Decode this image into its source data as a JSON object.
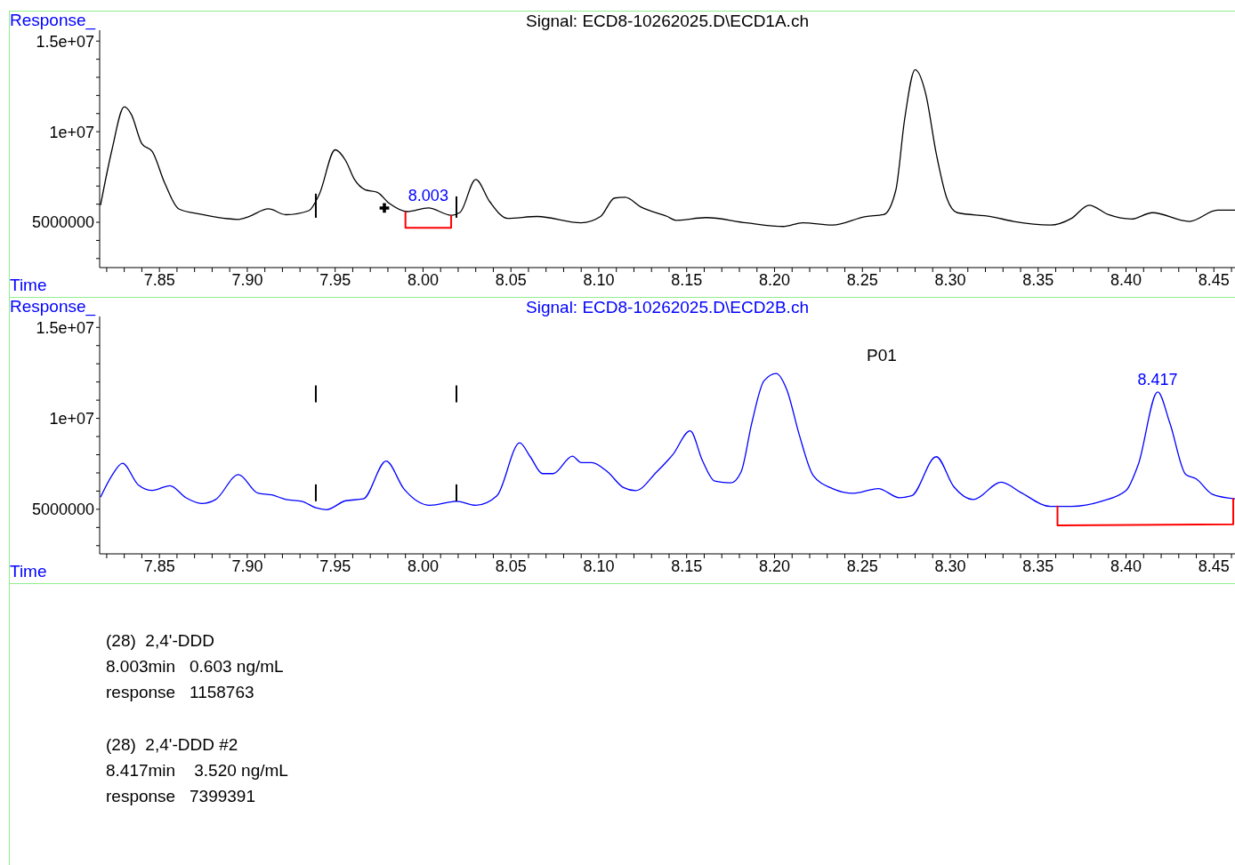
{
  "chart_data": [
    {
      "type": "line",
      "title": "Signal: ECD8-10262025.D\\ECD1A.ch",
      "xlabel": "Time",
      "ylabel": "Response_",
      "xlim": [
        7.816,
        8.462
      ],
      "ylim": [
        2500000,
        15600000
      ],
      "xticks": [
        {
          "value": 7.82,
          "label": null
        },
        {
          "value": 7.83,
          "label": null
        },
        {
          "value": 7.84,
          "label": null
        },
        {
          "value": 7.85,
          "label": "7.85"
        },
        {
          "value": 7.86,
          "label": null
        },
        {
          "value": 7.87,
          "label": null
        },
        {
          "value": 7.88,
          "label": null
        },
        {
          "value": 7.89,
          "label": null
        },
        {
          "value": 7.9,
          "label": "7.90"
        },
        {
          "value": 7.91,
          "label": null
        },
        {
          "value": 7.92,
          "label": null
        },
        {
          "value": 7.93,
          "label": null
        },
        {
          "value": 7.94,
          "label": null
        },
        {
          "value": 7.95,
          "label": "7.95"
        },
        {
          "value": 7.96,
          "label": null
        },
        {
          "value": 7.97,
          "label": null
        },
        {
          "value": 7.98,
          "label": null
        },
        {
          "value": 7.99,
          "label": null
        },
        {
          "value": 8.0,
          "label": "8.00"
        },
        {
          "value": 8.01,
          "label": null
        },
        {
          "value": 8.02,
          "label": null
        },
        {
          "value": 8.03,
          "label": null
        },
        {
          "value": 8.04,
          "label": null
        },
        {
          "value": 8.05,
          "label": "8.05"
        },
        {
          "value": 8.06,
          "label": null
        },
        {
          "value": 8.07,
          "label": null
        },
        {
          "value": 8.08,
          "label": null
        },
        {
          "value": 8.09,
          "label": null
        },
        {
          "value": 8.1,
          "label": "8.10"
        },
        {
          "value": 8.11,
          "label": null
        },
        {
          "value": 8.12,
          "label": null
        },
        {
          "value": 8.13,
          "label": null
        },
        {
          "value": 8.14,
          "label": null
        },
        {
          "value": 8.15,
          "label": "8.15"
        },
        {
          "value": 8.16,
          "label": null
        },
        {
          "value": 8.17,
          "label": null
        },
        {
          "value": 8.18,
          "label": null
        },
        {
          "value": 8.19,
          "label": null
        },
        {
          "value": 8.2,
          "label": "8.20"
        },
        {
          "value": 8.21,
          "label": null
        },
        {
          "value": 8.22,
          "label": null
        },
        {
          "value": 8.23,
          "label": null
        },
        {
          "value": 8.24,
          "label": null
        },
        {
          "value": 8.25,
          "label": "8.25"
        },
        {
          "value": 8.26,
          "label": null
        },
        {
          "value": 8.27,
          "label": null
        },
        {
          "value": 8.28,
          "label": null
        },
        {
          "value": 8.29,
          "label": null
        },
        {
          "value": 8.3,
          "label": "8.30"
        },
        {
          "value": 8.31,
          "label": null
        },
        {
          "value": 8.32,
          "label": null
        },
        {
          "value": 8.33,
          "label": null
        },
        {
          "value": 8.34,
          "label": null
        },
        {
          "value": 8.35,
          "label": "8.35"
        },
        {
          "value": 8.36,
          "label": null
        },
        {
          "value": 8.37,
          "label": null
        },
        {
          "value": 8.38,
          "label": null
        },
        {
          "value": 8.39,
          "label": null
        },
        {
          "value": 8.4,
          "label": "8.40"
        },
        {
          "value": 8.41,
          "label": null
        },
        {
          "value": 8.42,
          "label": null
        },
        {
          "value": 8.43,
          "label": null
        },
        {
          "value": 8.44,
          "label": null
        },
        {
          "value": 8.45,
          "label": "8.45"
        },
        {
          "value": 8.46,
          "label": null
        }
      ],
      "yticks": [
        {
          "value": 3000000,
          "label": null
        },
        {
          "value": 4000000,
          "label": null
        },
        {
          "value": 5000000,
          "label": "5000000"
        },
        {
          "value": 6000000,
          "label": null
        },
        {
          "value": 7000000,
          "label": null
        },
        {
          "value": 8000000,
          "label": null
        },
        {
          "value": 9000000,
          "label": null
        },
        {
          "value": 10000000,
          "label": "1e+07"
        },
        {
          "value": 11000000,
          "label": null
        },
        {
          "value": 12000000,
          "label": null
        },
        {
          "value": 13000000,
          "label": null
        },
        {
          "value": 14000000,
          "label": null
        },
        {
          "value": 15000000,
          "label": "1.5e+07"
        }
      ],
      "annotations": [
        {
          "text": "8.003",
          "x": 8.003,
          "y": 5790000
        }
      ],
      "series": [
        {
          "type": "line",
          "color": "#000000",
          "x": [
            7.8165,
            7.823,
            7.83,
            7.834,
            7.84,
            7.846,
            7.853,
            7.861,
            7.874,
            7.895,
            7.901,
            7.912,
            7.922,
            7.935,
            7.941,
            7.95,
            7.956,
            7.961,
            7.967,
            7.974,
            7.981,
            7.991,
            8.003,
            8.016,
            8.021,
            8.03,
            8.038,
            8.048,
            8.065,
            8.09,
            8.101,
            8.109,
            8.115,
            8.124,
            8.139,
            8.144,
            8.161,
            8.184,
            8.205,
            8.216,
            8.233,
            8.252,
            8.262,
            8.269,
            8.274,
            8.28,
            8.286,
            8.292,
            8.298,
            8.304,
            8.323,
            8.336,
            8.357,
            8.369,
            8.379,
            8.39,
            8.403,
            8.415,
            8.436,
            8.452,
            8.462
          ],
          "values": [
            5940000,
            9000000,
            11370000,
            10960000,
            9340000,
            8900000,
            7170000,
            5740000,
            5440000,
            5160000,
            5320000,
            5740000,
            5420000,
            5640000,
            6550000,
            9000000,
            8400000,
            7360000,
            6800000,
            6650000,
            6030000,
            5590000,
            5790000,
            5390000,
            5540000,
            7360000,
            6130000,
            5220000,
            5320000,
            4970000,
            5320000,
            6340000,
            6380000,
            5840000,
            5320000,
            5110000,
            5260000,
            4970000,
            4770000,
            4970000,
            4850000,
            5320000,
            5420000,
            6770000,
            10670000,
            13420000,
            12100000,
            8800000,
            6340000,
            5530000,
            5320000,
            5050000,
            4850000,
            5220000,
            5940000,
            5420000,
            5180000,
            5530000,
            5050000,
            5670000,
            5670000
          ]
        },
        {
          "type": "line",
          "color": "#000000",
          "x": [
            7.939,
            7.939
          ],
          "values": [
            5250000,
            6580000
          ]
        },
        {
          "type": "line",
          "color": "#000000",
          "x": [
            8.019,
            8.019
          ],
          "values": [
            5250000,
            6430000
          ]
        },
        {
          "type": "line",
          "color": "#ff0000",
          "x": [
            7.99,
            7.99,
            8.016,
            8.016
          ],
          "values": [
            5600000,
            4700000,
            4700000,
            5400000
          ]
        },
        {
          "type": "scatter",
          "marker": "cross",
          "color": "#000000",
          "x": [
            7.978
          ],
          "values": [
            5790000
          ]
        }
      ]
    },
    {
      "type": "line",
      "title": "Signal: ECD8-10262025.D\\ECD2B.ch",
      "xlabel": "Time",
      "ylabel": "Response_",
      "xlim": [
        7.816,
        8.462
      ],
      "ylim": [
        2550000,
        15600000
      ],
      "xticks": [
        {
          "value": 7.82,
          "label": null
        },
        {
          "value": 7.83,
          "label": null
        },
        {
          "value": 7.84,
          "label": null
        },
        {
          "value": 7.85,
          "label": "7.85"
        },
        {
          "value": 7.86,
          "label": null
        },
        {
          "value": 7.87,
          "label": null
        },
        {
          "value": 7.88,
          "label": null
        },
        {
          "value": 7.89,
          "label": null
        },
        {
          "value": 7.9,
          "label": "7.90"
        },
        {
          "value": 7.91,
          "label": null
        },
        {
          "value": 7.92,
          "label": null
        },
        {
          "value": 7.93,
          "label": null
        },
        {
          "value": 7.94,
          "label": null
        },
        {
          "value": 7.95,
          "label": "7.95"
        },
        {
          "value": 7.96,
          "label": null
        },
        {
          "value": 7.97,
          "label": null
        },
        {
          "value": 7.98,
          "label": null
        },
        {
          "value": 7.99,
          "label": null
        },
        {
          "value": 8.0,
          "label": "8.00"
        },
        {
          "value": 8.01,
          "label": null
        },
        {
          "value": 8.02,
          "label": null
        },
        {
          "value": 8.03,
          "label": null
        },
        {
          "value": 8.04,
          "label": null
        },
        {
          "value": 8.05,
          "label": "8.05"
        },
        {
          "value": 8.06,
          "label": null
        },
        {
          "value": 8.07,
          "label": null
        },
        {
          "value": 8.08,
          "label": null
        },
        {
          "value": 8.09,
          "label": null
        },
        {
          "value": 8.1,
          "label": "8.10"
        },
        {
          "value": 8.11,
          "label": null
        },
        {
          "value": 8.12,
          "label": null
        },
        {
          "value": 8.13,
          "label": null
        },
        {
          "value": 8.14,
          "label": null
        },
        {
          "value": 8.15,
          "label": "8.15"
        },
        {
          "value": 8.16,
          "label": null
        },
        {
          "value": 8.17,
          "label": null
        },
        {
          "value": 8.18,
          "label": null
        },
        {
          "value": 8.19,
          "label": null
        },
        {
          "value": 8.2,
          "label": "8.20"
        },
        {
          "value": 8.21,
          "label": null
        },
        {
          "value": 8.22,
          "label": null
        },
        {
          "value": 8.23,
          "label": null
        },
        {
          "value": 8.24,
          "label": null
        },
        {
          "value": 8.25,
          "label": "8.25"
        },
        {
          "value": 8.26,
          "label": null
        },
        {
          "value": 8.27,
          "label": null
        },
        {
          "value": 8.28,
          "label": null
        },
        {
          "value": 8.29,
          "label": null
        },
        {
          "value": 8.3,
          "label": "8.30"
        },
        {
          "value": 8.31,
          "label": null
        },
        {
          "value": 8.32,
          "label": null
        },
        {
          "value": 8.33,
          "label": null
        },
        {
          "value": 8.34,
          "label": null
        },
        {
          "value": 8.35,
          "label": "8.35"
        },
        {
          "value": 8.36,
          "label": null
        },
        {
          "value": 8.37,
          "label": null
        },
        {
          "value": 8.38,
          "label": null
        },
        {
          "value": 8.39,
          "label": null
        },
        {
          "value": 8.4,
          "label": "8.40"
        },
        {
          "value": 8.41,
          "label": null
        },
        {
          "value": 8.42,
          "label": null
        },
        {
          "value": 8.43,
          "label": null
        },
        {
          "value": 8.44,
          "label": null
        },
        {
          "value": 8.45,
          "label": "8.45"
        },
        {
          "value": 8.46,
          "label": null
        }
      ],
      "yticks": [
        {
          "value": 3000000,
          "label": null
        },
        {
          "value": 4000000,
          "label": null
        },
        {
          "value": 5000000,
          "label": "5000000"
        },
        {
          "value": 6000000,
          "label": null
        },
        {
          "value": 7000000,
          "label": null
        },
        {
          "value": 8000000,
          "label": null
        },
        {
          "value": 9000000,
          "label": null
        },
        {
          "value": 10000000,
          "label": "1e+07"
        },
        {
          "value": 11000000,
          "label": null
        },
        {
          "value": 12000000,
          "label": null
        },
        {
          "value": 13000000,
          "label": null
        },
        {
          "value": 14000000,
          "label": null
        },
        {
          "value": 15000000,
          "label": "1.5e+07"
        }
      ],
      "annotations": [
        "P01",
        {
          "text": "8.417",
          "x": 8.418,
          "y": 11450000
        }
      ],
      "series": [
        {
          "type": "line",
          "color": "#0000ff",
          "x": [
            7.8165,
            7.823,
            7.829,
            7.838,
            7.846,
            7.856,
            7.865,
            7.874,
            7.882,
            7.895,
            7.906,
            7.914,
            7.922,
            7.931,
            7.939,
            7.945,
            7.956,
            7.966,
            7.979,
            7.989,
            8.004,
            8.019,
            8.03,
            8.042,
            8.055,
            8.061,
            8.068,
            8.074,
            8.085,
            8.09,
            8.096,
            8.105,
            8.114,
            8.121,
            8.133,
            8.14,
            8.142,
            8.152,
            8.159,
            8.166,
            8.175,
            8.181,
            8.187,
            8.194,
            8.201,
            8.207,
            8.214,
            8.222,
            8.233,
            8.245,
            8.259,
            8.271,
            8.278,
            8.292,
            8.302,
            8.313,
            8.329,
            8.34,
            8.357,
            8.369,
            8.386,
            8.4,
            8.407,
            8.418,
            8.425,
            8.434,
            8.44,
            8.449,
            8.462
          ],
          "values": [
            5670000,
            6860000,
            7530000,
            6340000,
            6040000,
            6300000,
            5640000,
            5320000,
            5540000,
            6910000,
            5890000,
            5790000,
            5540000,
            5440000,
            5080000,
            4980000,
            5470000,
            5570000,
            7650000,
            6140000,
            5220000,
            5440000,
            5220000,
            5740000,
            8650000,
            7890000,
            6960000,
            6960000,
            7920000,
            7570000,
            7570000,
            7060000,
            6200000,
            6030000,
            7060000,
            7770000,
            7990000,
            9310000,
            7670000,
            6550000,
            6450000,
            7060000,
            9720000,
            12060000,
            12470000,
            11570000,
            9120000,
            6860000,
            6140000,
            5880000,
            6140000,
            5640000,
            5740000,
            7890000,
            6240000,
            5540000,
            6490000,
            5930000,
            5160000,
            5160000,
            5440000,
            6030000,
            7470000,
            11450000,
            9720000,
            6910000,
            6670000,
            5830000,
            5570000
          ]
        },
        {
          "type": "line",
          "color": "#000000",
          "x": [
            7.939,
            7.939
          ],
          "values": [
            10880000,
            11810000
          ]
        },
        {
          "type": "line",
          "color": "#000000",
          "x": [
            7.939,
            7.939
          ],
          "values": [
            5440000,
            6370000
          ]
        },
        {
          "type": "line",
          "color": "#000000",
          "x": [
            8.019,
            8.019
          ],
          "values": [
            10880000,
            11810000
          ]
        },
        {
          "type": "line",
          "color": "#000000",
          "x": [
            8.019,
            8.019
          ],
          "values": [
            5440000,
            6370000
          ]
        },
        {
          "type": "line",
          "color": "#ff0000",
          "x": [
            8.361,
            8.361,
            8.461,
            8.461
          ],
          "values": [
            5200000,
            4120000,
            4170000,
            5600000
          ]
        }
      ]
    },
    {
      "type": "other",
      "annotations": [
        "(28)  2,4'-DDD",
        "8.003min   0.603 ng/mL",
        "response   1158763",
        "(28)  2,4'-DDD #2",
        "8.417min    3.520 ng/mL",
        "response   7399391"
      ]
    }
  ]
}
